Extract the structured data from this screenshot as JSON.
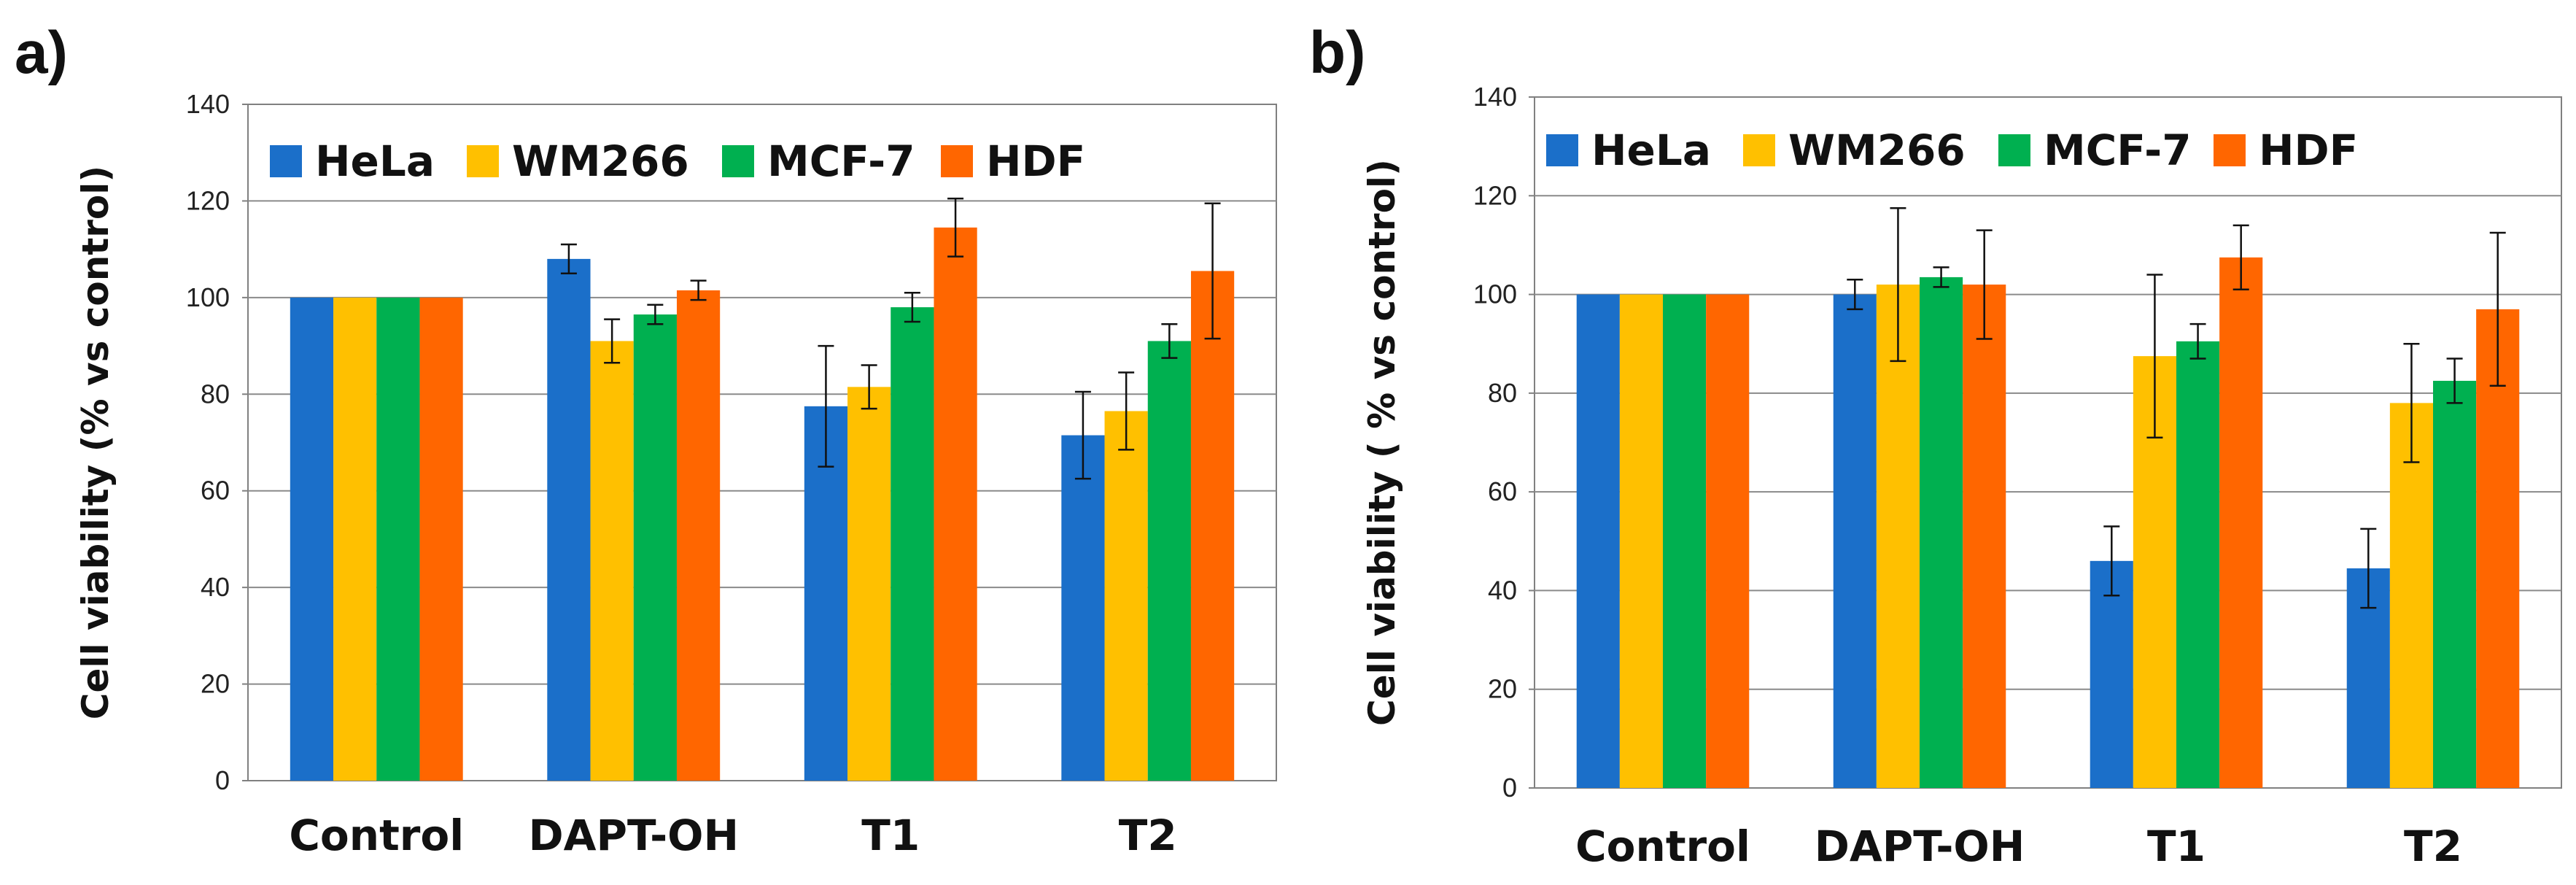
{
  "chart_data": [
    {
      "type": "bar",
      "panel_label": "a)",
      "categories": [
        "Control",
        "DAPT-OH",
        "T1",
        "T2"
      ],
      "ylabel": "Cell viability (% vs control)",
      "ylim": [
        0,
        140
      ],
      "yticks": [
        "0",
        "20",
        "40",
        "60",
        "80",
        "100",
        "120",
        "140"
      ],
      "grid": true,
      "legend_position": "top",
      "series": [
        {
          "name": "HeLa",
          "color": "#1B6FC9",
          "values": [
            100,
            108,
            77.5,
            71.5
          ],
          "errors": [
            0,
            3,
            12.5,
            9
          ]
        },
        {
          "name": "WM266",
          "color": "#FFC000",
          "values": [
            100,
            91,
            81.5,
            76.5
          ],
          "errors": [
            0,
            4.5,
            4.5,
            8
          ]
        },
        {
          "name": "MCF-7",
          "color": "#00B050",
          "values": [
            100,
            96.5,
            98,
            91
          ],
          "errors": [
            0,
            2,
            3,
            3.5
          ]
        },
        {
          "name": "HDF",
          "color": "#FF6600",
          "values": [
            100,
            101.5,
            114.5,
            105.5
          ],
          "errors": [
            0,
            2,
            6,
            14
          ]
        }
      ]
    },
    {
      "type": "bar",
      "panel_label": "b)",
      "categories": [
        "Control",
        "DAPT-OH",
        "T1",
        "T2"
      ],
      "ylabel": "Cell viability  ( % vs control)",
      "ylim": [
        0,
        140
      ],
      "yticks": [
        "0",
        "20",
        "40",
        "60",
        "80",
        "100",
        "120",
        "140"
      ],
      "grid": true,
      "legend_position": "top",
      "series": [
        {
          "name": "HeLa",
          "color": "#1B6FC9",
          "values": [
            100,
            100,
            46,
            44.5
          ],
          "errors": [
            0,
            3,
            7,
            8
          ]
        },
        {
          "name": "WM266",
          "color": "#FFC000",
          "values": [
            100,
            102,
            87.5,
            78
          ],
          "errors": [
            0,
            15.5,
            16.5,
            12
          ]
        },
        {
          "name": "MCF-7",
          "color": "#00B050",
          "values": [
            100,
            103.5,
            90.5,
            82.5
          ],
          "errors": [
            0,
            2,
            3.5,
            4.5
          ]
        },
        {
          "name": "HDF",
          "color": "#FF6600",
          "values": [
            100,
            102,
            107.5,
            97
          ],
          "errors": [
            0,
            11,
            6.5,
            15.5
          ]
        }
      ]
    }
  ]
}
